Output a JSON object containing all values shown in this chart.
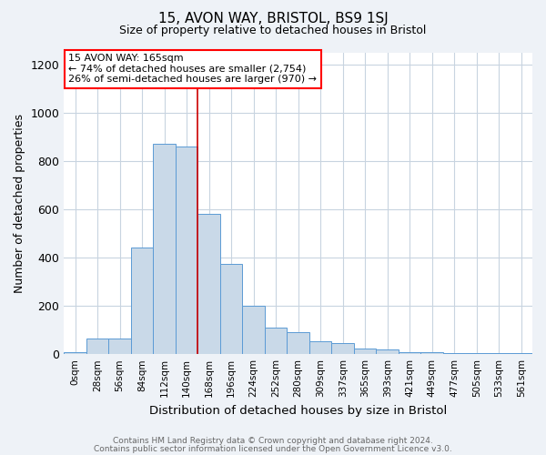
{
  "title1": "15, AVON WAY, BRISTOL, BS9 1SJ",
  "title2": "Size of property relative to detached houses in Bristol",
  "xlabel": "Distribution of detached houses by size in Bristol",
  "ylabel": "Number of detached properties",
  "bin_labels": [
    "0sqm",
    "28sqm",
    "56sqm",
    "84sqm",
    "112sqm",
    "140sqm",
    "168sqm",
    "196sqm",
    "224sqm",
    "252sqm",
    "280sqm",
    "309sqm",
    "337sqm",
    "365sqm",
    "393sqm",
    "421sqm",
    "449sqm",
    "477sqm",
    "505sqm",
    "533sqm",
    "561sqm"
  ],
  "bar_values": [
    10,
    65,
    65,
    440,
    870,
    860,
    580,
    375,
    200,
    110,
    90,
    55,
    45,
    25,
    20,
    10,
    8,
    3,
    3,
    3,
    3
  ],
  "vline_index": 6,
  "bar_color": "#c9d9e8",
  "bar_edge_color": "#5b9bd5",
  "vline_color": "#cc0000",
  "ylim": [
    0,
    1250
  ],
  "yticks": [
    0,
    200,
    400,
    600,
    800,
    1000,
    1200
  ],
  "annotation_text": "15 AVON WAY: 165sqm\n← 74% of detached houses are smaller (2,754)\n26% of semi-detached houses are larger (970) →",
  "footer1": "Contains HM Land Registry data © Crown copyright and database right 2024.",
  "footer2": "Contains public sector information licensed under the Open Government Licence v3.0.",
  "bg_color": "#eef2f7",
  "plot_bg_color": "#ffffff",
  "grid_color": "#c8d4e0"
}
